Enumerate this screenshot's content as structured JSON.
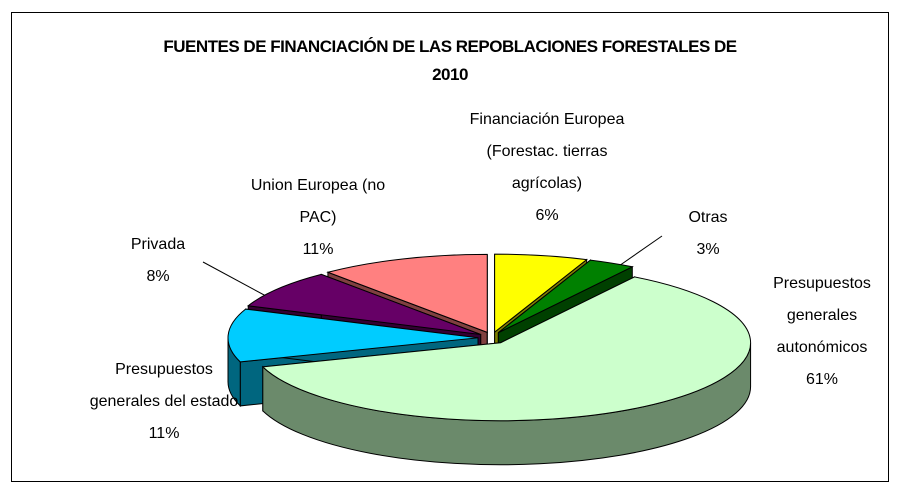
{
  "chart_data": {
    "type": "pie3d",
    "title": "FUENTES DE FINANCIACIÓN DE LAS REPOBLACIONES FORESTALES DE 2010",
    "categories": [
      "Financiación Europea (Forestac. tierras agrícolas)",
      "Otras",
      "Presupuestos generales autonómicos",
      "Presupuestos generales del estado",
      "Privada",
      "Union Europea (no PAC)"
    ],
    "values": [
      6,
      3,
      61,
      11,
      8,
      11
    ],
    "value_labels": [
      "6%",
      "3%",
      "61%",
      "11%",
      "8%",
      "11%"
    ],
    "colors": [
      "#ffff00",
      "#008000",
      "#ccffcc",
      "#00ccff",
      "#660066",
      "#ff8080"
    ],
    "side_colors": [
      "#808000",
      "#004000",
      "#6b8a6b",
      "#00667f",
      "#330033",
      "#804040"
    ]
  }
}
